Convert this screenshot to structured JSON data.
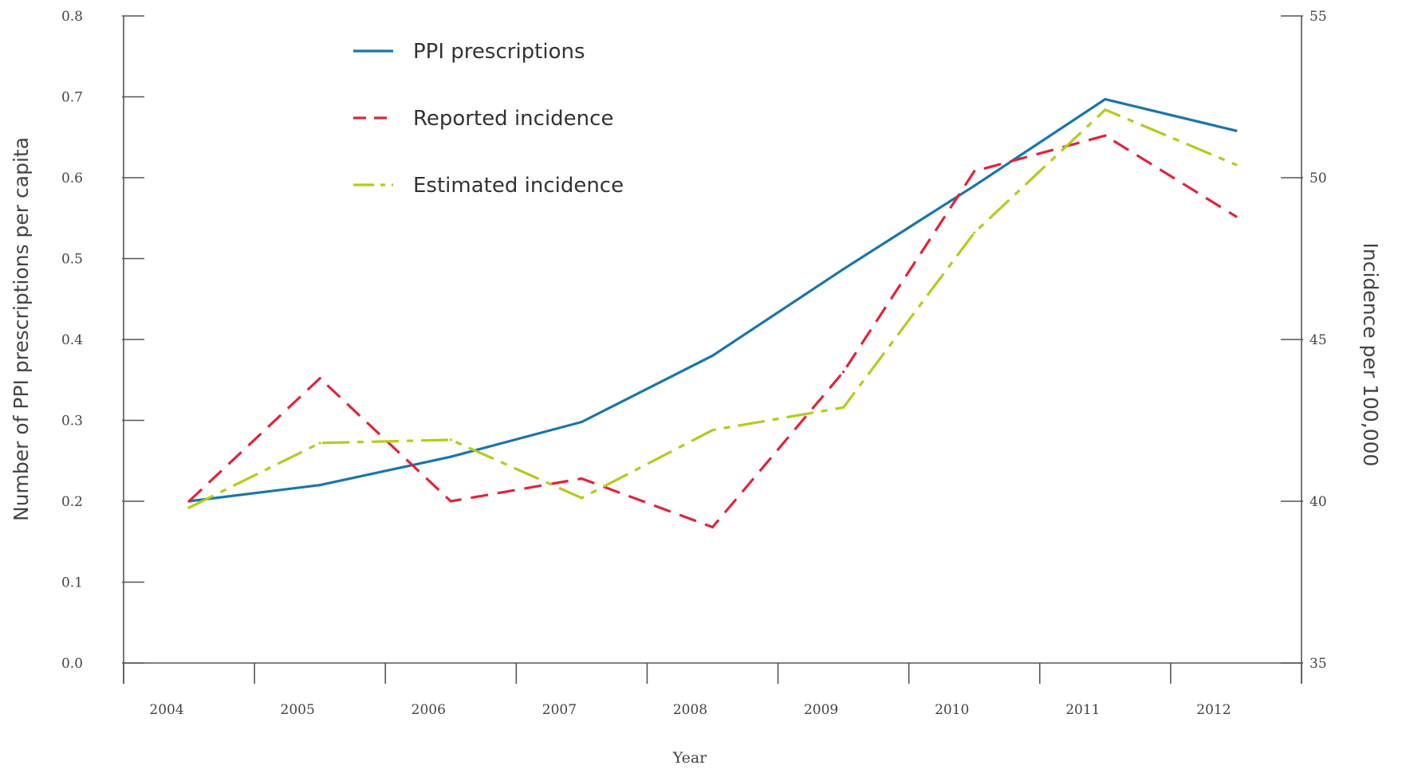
{
  "chart_data": {
    "type": "line",
    "xlabel": "Year",
    "ylabel_left": "Number of PPI prescriptions per capita",
    "ylabel_right": "Incidence per 100,000",
    "categories": [
      "2004",
      "2005",
      "2006",
      "2007",
      "2008",
      "2009",
      "2010",
      "2011",
      "2012"
    ],
    "ylim_left": [
      0.0,
      0.8
    ],
    "ylim_right": [
      35,
      55
    ],
    "yticks_left": [
      "0.0",
      "0.1",
      "0.2",
      "0.3",
      "0.4",
      "0.5",
      "0.6",
      "0.7",
      "0.8"
    ],
    "yticks_right": [
      "35",
      "40",
      "45",
      "50",
      "55"
    ],
    "legend_position": "top-left",
    "grid": false,
    "series": [
      {
        "name": "PPI prescriptions",
        "axis": "left",
        "color": "#1a75ab",
        "dash": "solid",
        "values": [
          0.2,
          0.22,
          0.255,
          0.298,
          0.38,
          0.487,
          0.59,
          0.697,
          0.658
        ]
      },
      {
        "name": "Reported incidence",
        "axis": "right",
        "color": "#e0243b",
        "dash": "dashed",
        "values": [
          40.0,
          43.8,
          40.0,
          40.7,
          39.2,
          44.0,
          50.2,
          51.3,
          48.8
        ]
      },
      {
        "name": "Estimated incidence",
        "axis": "right",
        "color": "#b3cc1c",
        "dash": "dashdot",
        "values": [
          39.8,
          41.8,
          41.9,
          40.1,
          42.2,
          42.9,
          48.3,
          52.1,
          50.4
        ]
      }
    ]
  }
}
